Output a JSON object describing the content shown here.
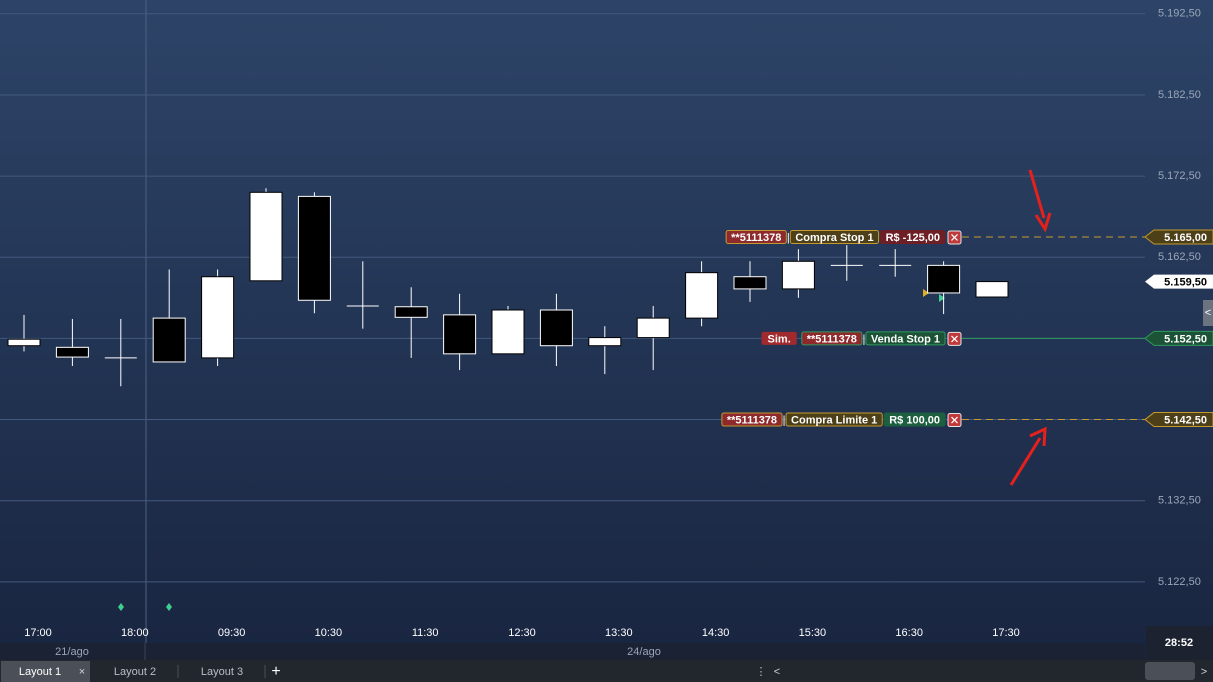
{
  "chart_data": {
    "type": "candlestick",
    "categories": [
      "17:00",
      null,
      "18:00",
      null,
      "09:30",
      null,
      "10:30",
      null,
      "11:30",
      null,
      "12:30",
      null,
      "13:30",
      null,
      "14:30",
      null,
      "15:30",
      null,
      "16:30",
      null,
      "17:30"
    ],
    "open": [
      5151.6,
      5151.4,
      5150.1,
      5155.0,
      5150.1,
      5159.6,
      5170.0,
      5156.5,
      5156.4,
      5155.4,
      5150.6,
      5156.0,
      5151.6,
      5152.6,
      5155.0,
      5160.1,
      5158.6,
      5161.5,
      5161.5,
      5161.5,
      5157.6
    ],
    "high": [
      5155.4,
      5154.9,
      5154.9,
      5161.0,
      5161.0,
      5171.0,
      5170.5,
      5162.0,
      5158.8,
      5158.0,
      5156.5,
      5158.0,
      5154.0,
      5156.5,
      5162.0,
      5162.0,
      5163.5,
      5164.0,
      5163.5,
      5162.0,
      5159.5
    ],
    "low": [
      5150.9,
      5149.1,
      5146.6,
      5149.6,
      5149.1,
      5159.6,
      5155.6,
      5153.7,
      5150.1,
      5148.6,
      5150.6,
      5149.1,
      5148.1,
      5148.6,
      5154.0,
      5157.0,
      5157.5,
      5159.6,
      5160.1,
      5155.5,
      5157.6
    ],
    "close": [
      5152.4,
      5150.2,
      5150.1,
      5149.6,
      5160.1,
      5170.5,
      5157.2,
      5156.5,
      5155.1,
      5150.6,
      5156.0,
      5151.6,
      5152.6,
      5155.0,
      5160.6,
      5158.6,
      5162.0,
      5161.5,
      5161.5,
      5158.1,
      5159.5
    ],
    "ylim": [
      5117.8,
      5194.2
    ],
    "yticks": [
      {
        "value": 5122.5,
        "label": "5.122,50"
      },
      {
        "value": 5132.5,
        "label": "5.132,50"
      },
      {
        "value": 5142.5,
        "label": "5.142,50"
      },
      {
        "value": 5152.5,
        "label": "5.152,50"
      },
      {
        "value": 5162.5,
        "label": "5.162,50"
      },
      {
        "value": 5172.5,
        "label": "5.172,50"
      },
      {
        "value": 5182.5,
        "label": "5.182,50"
      },
      {
        "value": 5192.5,
        "label": "5.192,50"
      }
    ],
    "grid": true,
    "last": {
      "value": 5159.5,
      "label": "5.159,50"
    },
    "orders": [
      {
        "account": "**5111378",
        "name": "Compra Stop 1",
        "result": "R$ -125,00",
        "result_color": "#6e1f26",
        "price": 5165.0,
        "price_label": "5.165,00",
        "color": "#c49a2e",
        "chip": "#4d3f17",
        "dashed": true
      },
      {
        "button": "Sim.",
        "account": "**5111378",
        "name": "Venda Stop 1",
        "price": 5152.5,
        "price_label": "5.152,50",
        "color": "#2f9a5e",
        "chip": "#1c5236",
        "dashed": false
      },
      {
        "account": "**5111378",
        "name": "Compra Limite 1",
        "result": "R$ 100,00",
        "result_color": "#1d6040",
        "price": 5142.5,
        "price_label": "5.142,50",
        "color": "#c49a2e",
        "chip": "#4d3f17",
        "dashed": true
      }
    ],
    "dates": [
      "21/ago",
      "24/ago"
    ]
  },
  "clock": "28:52",
  "tabs": [
    "Layout 1",
    "Layout 2",
    "Layout 3"
  ]
}
